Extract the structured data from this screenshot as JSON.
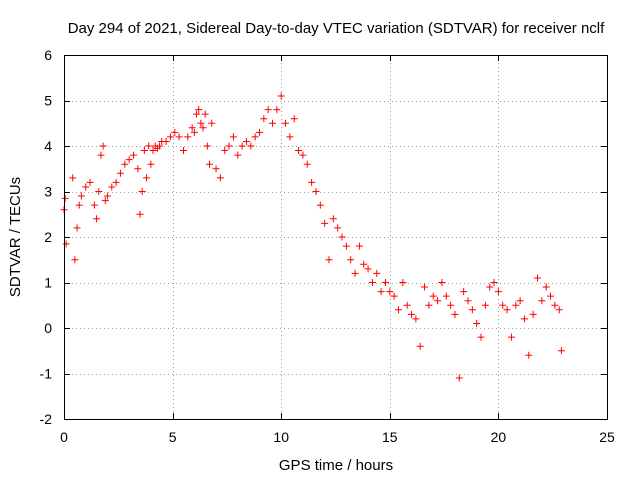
{
  "chart_data": {
    "type": "scatter",
    "title": "Day 294 of 2021, Sidereal Day-to-day VTEC variation (SDTVAR) for receiver nclf",
    "xlabel": "GPS time / hours",
    "ylabel": "SDTVAR / TECUs",
    "xlim": [
      0,
      25
    ],
    "ylim": [
      -2,
      6
    ],
    "x_ticks": [
      0,
      5,
      10,
      15,
      20,
      25
    ],
    "y_ticks": [
      -2,
      -1,
      0,
      1,
      2,
      3,
      4,
      5,
      6
    ],
    "grid": true,
    "marker": "+",
    "colors": {
      "series": "#ff0000",
      "frame": "#000000",
      "grid": "#a0a0a0"
    },
    "series": [
      {
        "name": "SDTVAR",
        "x": [
          0.0,
          0.05,
          0.1,
          0.4,
          0.5,
          0.6,
          0.7,
          0.8,
          1.0,
          1.2,
          1.4,
          1.5,
          1.6,
          1.7,
          1.8,
          1.9,
          2.0,
          2.2,
          2.4,
          2.6,
          2.8,
          3.0,
          3.2,
          3.4,
          3.5,
          3.6,
          3.7,
          3.8,
          3.9,
          4.0,
          4.1,
          4.2,
          4.3,
          4.4,
          4.5,
          4.7,
          4.9,
          5.1,
          5.3,
          5.5,
          5.7,
          5.9,
          6.0,
          6.1,
          6.2,
          6.3,
          6.4,
          6.5,
          6.6,
          6.7,
          6.8,
          7.0,
          7.2,
          7.4,
          7.6,
          7.8,
          8.0,
          8.2,
          8.4,
          8.6,
          8.8,
          9.0,
          9.2,
          9.4,
          9.6,
          9.8,
          10.0,
          10.2,
          10.4,
          10.6,
          10.8,
          11.0,
          11.2,
          11.4,
          11.6,
          11.8,
          12.0,
          12.2,
          12.4,
          12.6,
          12.8,
          13.0,
          13.2,
          13.4,
          13.6,
          13.8,
          14.0,
          14.2,
          14.4,
          14.6,
          14.8,
          15.0,
          15.2,
          15.4,
          15.6,
          15.8,
          16.0,
          16.2,
          16.4,
          16.6,
          16.8,
          17.0,
          17.2,
          17.4,
          17.6,
          17.8,
          18.0,
          18.2,
          18.4,
          18.6,
          18.8,
          19.0,
          19.2,
          19.4,
          19.6,
          19.8,
          20.0,
          20.2,
          20.4,
          20.6,
          20.8,
          21.0,
          21.2,
          21.4,
          21.6,
          21.8,
          22.0,
          22.2,
          22.4,
          22.6,
          22.8,
          22.9
        ],
        "y": [
          2.6,
          2.85,
          1.85,
          3.3,
          1.5,
          2.2,
          2.7,
          2.9,
          3.1,
          3.2,
          2.7,
          2.4,
          3.0,
          3.8,
          4.0,
          2.8,
          2.9,
          3.1,
          3.2,
          3.4,
          3.6,
          3.7,
          3.8,
          3.5,
          2.5,
          3.0,
          3.9,
          3.3,
          4.0,
          3.6,
          3.9,
          4.0,
          3.95,
          4.0,
          4.1,
          4.1,
          4.2,
          4.3,
          4.2,
          3.9,
          4.2,
          4.4,
          4.3,
          4.7,
          4.8,
          4.5,
          4.4,
          4.7,
          4.0,
          3.6,
          4.5,
          3.5,
          3.3,
          3.9,
          4.0,
          4.2,
          3.8,
          4.0,
          4.1,
          4.0,
          4.2,
          4.3,
          4.6,
          4.8,
          4.5,
          4.8,
          5.1,
          4.5,
          4.2,
          4.6,
          3.9,
          3.8,
          3.6,
          3.2,
          3.0,
          2.7,
          2.3,
          1.5,
          2.4,
          2.2,
          2.0,
          1.8,
          1.5,
          1.2,
          1.8,
          1.4,
          1.3,
          1.0,
          1.2,
          0.8,
          1.0,
          0.8,
          0.7,
          0.4,
          1.0,
          0.5,
          0.3,
          0.2,
          -0.4,
          0.9,
          0.5,
          0.7,
          0.6,
          1.0,
          0.7,
          0.5,
          0.3,
          -1.1,
          0.8,
          0.6,
          0.4,
          0.1,
          -0.2,
          0.5,
          0.9,
          1.0,
          0.8,
          0.5,
          0.4,
          -0.2,
          0.5,
          0.6,
          0.2,
          -0.6,
          0.3,
          1.1,
          0.6,
          0.9,
          0.7,
          0.5,
          0.4,
          -0.5
        ],
        "color": "#ff0000"
      }
    ]
  }
}
